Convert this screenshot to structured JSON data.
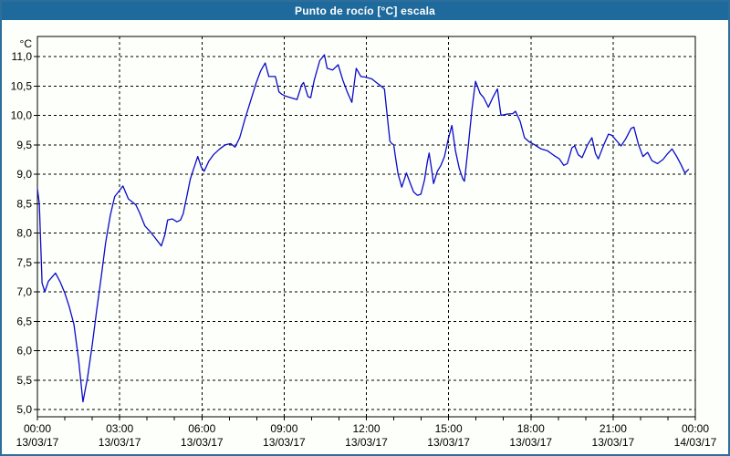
{
  "window": {
    "title": "Punto de rocío [°C] escala",
    "title_bar_color": "#1E6A9C",
    "border_color": "#2D6E9D",
    "background_color": "#FDFFFA"
  },
  "chart_data": {
    "type": "line",
    "title": "Punto de rocío [°C] escala",
    "ylabel": "°C",
    "xlabel": "",
    "grid": "dashed-black",
    "legend": "none",
    "ylim": [
      5.0,
      11.0
    ],
    "y_tick_step": 0.5,
    "xlim_hours": [
      0,
      24
    ],
    "x_minor_tick_hours": 1,
    "line_color": "#0A0AC8",
    "y_ticks": [
      {
        "v": 11.0,
        "label": "11,0"
      },
      {
        "v": 10.5,
        "label": "10,5"
      },
      {
        "v": 10.0,
        "label": "10,0"
      },
      {
        "v": 9.5,
        "label": "9,5"
      },
      {
        "v": 9.0,
        "label": "9,0"
      },
      {
        "v": 8.5,
        "label": "8,5"
      },
      {
        "v": 8.0,
        "label": "8,0"
      },
      {
        "v": 7.5,
        "label": "7,5"
      },
      {
        "v": 7.0,
        "label": "7,0"
      },
      {
        "v": 6.5,
        "label": "6,5"
      },
      {
        "v": 6.0,
        "label": "6,0"
      },
      {
        "v": 5.5,
        "label": "5,5"
      },
      {
        "v": 5.0,
        "label": "5,0"
      }
    ],
    "x_ticks": [
      {
        "t": 0,
        "time": "00:00",
        "date": "13/03/17"
      },
      {
        "t": 3,
        "time": "03:00",
        "date": "13/03/17"
      },
      {
        "t": 6,
        "time": "06:00",
        "date": "13/03/17"
      },
      {
        "t": 9,
        "time": "09:00",
        "date": "13/03/17"
      },
      {
        "t": 12,
        "time": "12:00",
        "date": "13/03/17"
      },
      {
        "t": 15,
        "time": "15:00",
        "date": "13/03/17"
      },
      {
        "t": 18,
        "time": "18:00",
        "date": "13/03/17"
      },
      {
        "t": 21,
        "time": "21:00",
        "date": "13/03/17"
      },
      {
        "t": 24,
        "time": "00:00",
        "date": "14/03/17"
      }
    ],
    "series": [
      {
        "name": "Punto de rocío [°C]",
        "points": [
          [
            0,
            8.75
          ],
          [
            0.07,
            8.5
          ],
          [
            0.17,
            7.15
          ],
          [
            0.27,
            7.0
          ],
          [
            0.4,
            7.18
          ],
          [
            0.66,
            7.32
          ],
          [
            0.83,
            7.17
          ],
          [
            1.0,
            6.98
          ],
          [
            1.16,
            6.75
          ],
          [
            1.33,
            6.45
          ],
          [
            1.5,
            5.85
          ],
          [
            1.6,
            5.4
          ],
          [
            1.66,
            5.13
          ],
          [
            1.83,
            5.55
          ],
          [
            2.0,
            6.1
          ],
          [
            2.16,
            6.68
          ],
          [
            2.33,
            7.26
          ],
          [
            2.49,
            7.84
          ],
          [
            2.66,
            8.3
          ],
          [
            2.82,
            8.62
          ],
          [
            2.99,
            8.72
          ],
          [
            3.12,
            8.8
          ],
          [
            3.32,
            8.58
          ],
          [
            3.59,
            8.48
          ],
          [
            3.72,
            8.35
          ],
          [
            3.92,
            8.12
          ],
          [
            4.12,
            8.02
          ],
          [
            4.32,
            7.9
          ],
          [
            4.52,
            7.78
          ],
          [
            4.65,
            7.97
          ],
          [
            4.75,
            8.22
          ],
          [
            4.92,
            8.24
          ],
          [
            5.09,
            8.19
          ],
          [
            5.22,
            8.22
          ],
          [
            5.32,
            8.33
          ],
          [
            5.45,
            8.62
          ],
          [
            5.58,
            8.92
          ],
          [
            5.72,
            9.12
          ],
          [
            5.85,
            9.3
          ],
          [
            5.98,
            9.12
          ],
          [
            6.08,
            9.05
          ],
          [
            6.25,
            9.22
          ],
          [
            6.42,
            9.33
          ],
          [
            6.65,
            9.43
          ],
          [
            6.85,
            9.5
          ],
          [
            7.05,
            9.52
          ],
          [
            7.21,
            9.46
          ],
          [
            7.38,
            9.62
          ],
          [
            7.58,
            9.95
          ],
          [
            7.78,
            10.25
          ],
          [
            7.98,
            10.55
          ],
          [
            8.14,
            10.75
          ],
          [
            8.31,
            10.89
          ],
          [
            8.44,
            10.66
          ],
          [
            8.68,
            10.66
          ],
          [
            8.81,
            10.4
          ],
          [
            8.91,
            10.36
          ],
          [
            9.04,
            10.33
          ],
          [
            9.24,
            10.3
          ],
          [
            9.47,
            10.27
          ],
          [
            9.64,
            10.52
          ],
          [
            9.71,
            10.56
          ],
          [
            9.87,
            10.32
          ],
          [
            9.97,
            10.3
          ],
          [
            10.1,
            10.6
          ],
          [
            10.3,
            10.93
          ],
          [
            10.47,
            11.03
          ],
          [
            10.57,
            10.8
          ],
          [
            10.77,
            10.77
          ],
          [
            10.97,
            10.86
          ],
          [
            11.14,
            10.6
          ],
          [
            11.3,
            10.4
          ],
          [
            11.47,
            10.22
          ],
          [
            11.63,
            10.8
          ],
          [
            11.8,
            10.66
          ],
          [
            11.97,
            10.65
          ],
          [
            12.2,
            10.62
          ],
          [
            12.36,
            10.56
          ],
          [
            12.53,
            10.5
          ],
          [
            12.66,
            10.45
          ],
          [
            12.76,
            10.0
          ],
          [
            12.86,
            9.56
          ],
          [
            12.93,
            9.52
          ],
          [
            13.0,
            9.5
          ],
          [
            13.06,
            9.3
          ],
          [
            13.16,
            9.0
          ],
          [
            13.29,
            8.78
          ],
          [
            13.46,
            9.02
          ],
          [
            13.62,
            8.82
          ],
          [
            13.72,
            8.7
          ],
          [
            13.86,
            8.64
          ],
          [
            13.99,
            8.66
          ],
          [
            14.12,
            8.9
          ],
          [
            14.22,
            9.2
          ],
          [
            14.29,
            9.36
          ],
          [
            14.39,
            9.05
          ],
          [
            14.45,
            8.84
          ],
          [
            14.59,
            9.05
          ],
          [
            14.72,
            9.15
          ],
          [
            14.85,
            9.3
          ],
          [
            14.99,
            9.6
          ],
          [
            15.12,
            9.83
          ],
          [
            15.25,
            9.4
          ],
          [
            15.39,
            9.1
          ],
          [
            15.52,
            8.92
          ],
          [
            15.58,
            8.88
          ],
          [
            15.72,
            9.5
          ],
          [
            15.85,
            10.1
          ],
          [
            15.98,
            10.58
          ],
          [
            16.15,
            10.37
          ],
          [
            16.28,
            10.3
          ],
          [
            16.45,
            10.14
          ],
          [
            16.61,
            10.3
          ],
          [
            16.78,
            10.45
          ],
          [
            16.91,
            10.0
          ],
          [
            17.11,
            10.02
          ],
          [
            17.34,
            10.03
          ],
          [
            17.44,
            10.07
          ],
          [
            17.61,
            9.9
          ],
          [
            17.77,
            9.62
          ],
          [
            17.94,
            9.55
          ],
          [
            18.14,
            9.5
          ],
          [
            18.37,
            9.43
          ],
          [
            18.6,
            9.4
          ],
          [
            18.84,
            9.32
          ],
          [
            19.04,
            9.26
          ],
          [
            19.2,
            9.15
          ],
          [
            19.33,
            9.18
          ],
          [
            19.5,
            9.45
          ],
          [
            19.6,
            9.48
          ],
          [
            19.73,
            9.33
          ],
          [
            19.87,
            9.28
          ],
          [
            20.07,
            9.5
          ],
          [
            20.23,
            9.62
          ],
          [
            20.36,
            9.35
          ],
          [
            20.46,
            9.26
          ],
          [
            20.66,
            9.5
          ],
          [
            20.83,
            9.68
          ],
          [
            20.96,
            9.66
          ],
          [
            21.16,
            9.55
          ],
          [
            21.29,
            9.48
          ],
          [
            21.46,
            9.6
          ],
          [
            21.66,
            9.78
          ],
          [
            21.76,
            9.8
          ],
          [
            21.93,
            9.5
          ],
          [
            22.09,
            9.3
          ],
          [
            22.26,
            9.37
          ],
          [
            22.42,
            9.23
          ],
          [
            22.62,
            9.18
          ],
          [
            22.82,
            9.25
          ],
          [
            22.99,
            9.35
          ],
          [
            23.15,
            9.43
          ],
          [
            23.32,
            9.3
          ],
          [
            23.49,
            9.15
          ],
          [
            23.62,
            9.02
          ],
          [
            23.75,
            9.08
          ]
        ]
      }
    ]
  }
}
